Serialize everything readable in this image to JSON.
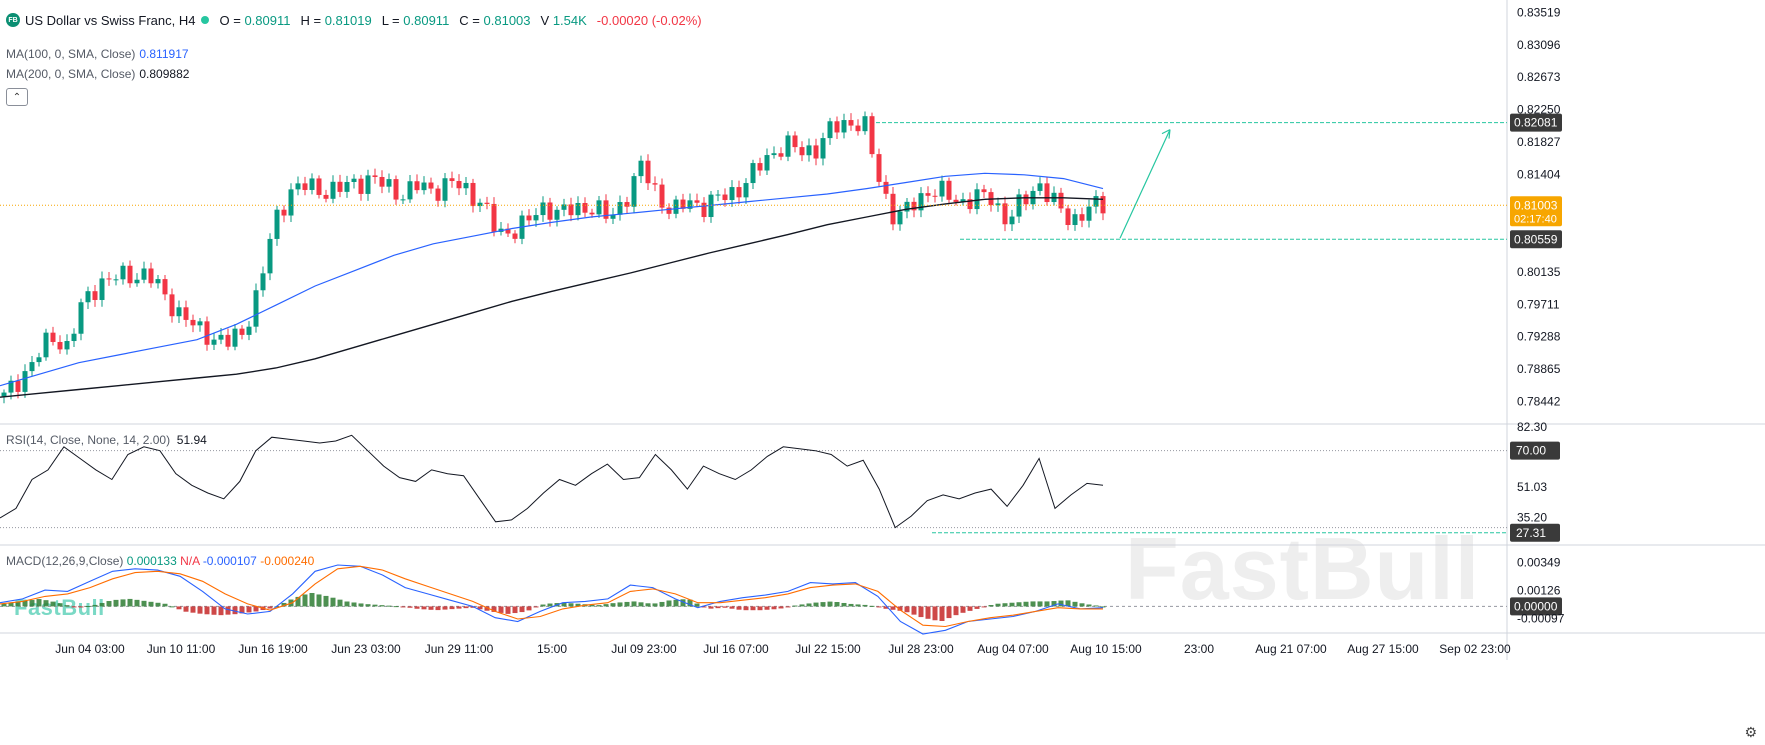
{
  "header": {
    "logo_text": "FB",
    "symbol": "US Dollar vs Swiss Franc, H4",
    "open_label": "O",
    "open": "0.80911",
    "high_label": "H",
    "high": "0.81019",
    "low_label": "L",
    "low": "0.80911",
    "close_label": "C",
    "close": "0.81003",
    "volume_label": "V",
    "volume": "1.54K",
    "change": "-0.00020 (-0.02%)"
  },
  "indicators": {
    "ma100": {
      "label": "MA(100, 0, SMA, Close)",
      "value": "0.811917",
      "color": "#2962ff"
    },
    "ma200": {
      "label": "MA(200, 0, SMA, Close)",
      "value": "0.809882",
      "color": "#000000"
    },
    "rsi": {
      "label": "RSI(14, Close, None, 14, 2.00)",
      "value": "51.94"
    },
    "macd": {
      "label": "MACD(12,26,9,Close)",
      "hist": "0.000133",
      "na": "N/A",
      "macd": "-0.000107",
      "signal": "-0.000240"
    }
  },
  "watermark": {
    "brand": "FastBull"
  },
  "chart_data": [
    {
      "type": "candlestick",
      "title": "US Dollar vs Swiss Franc, H4",
      "x_tick_labels": [
        "Jun 04 03:00",
        "Jun 10 11:00",
        "Jun 16 19:00",
        "Jun 23 03:00",
        "Jun 29 11:00",
        "15:00",
        "Jul 09 23:00",
        "Jul 16 07:00",
        "Jul 22 15:00",
        "Jul 28 23:00",
        "Aug 04 07:00",
        "Aug 10 15:00",
        "23:00",
        "Aug 21 07:00",
        "Aug 27 15:00",
        "Sep 02 23:00"
      ],
      "y_tick_labels": [
        "0.83519",
        "0.83096",
        "0.82673",
        "0.82250",
        "0.81827",
        "0.81404",
        "0.80135",
        "0.79711",
        "0.79288",
        "0.78865",
        "0.78442"
      ],
      "ylim": [
        0.7815,
        0.8368
      ],
      "price_path": [
        0.785,
        0.7875,
        0.79,
        0.793,
        0.7915,
        0.7975,
        0.8,
        0.8005,
        0.801,
        0.801,
        0.7985,
        0.796,
        0.794,
        0.793,
        0.792,
        0.7935,
        0.799,
        0.808,
        0.812,
        0.8125,
        0.812,
        0.812,
        0.813,
        0.8135,
        0.8125,
        0.8115,
        0.8125,
        0.812,
        0.813,
        0.812,
        0.8105,
        0.806,
        0.807,
        0.808,
        0.81,
        0.809,
        0.8095,
        0.81,
        0.808,
        0.811,
        0.815,
        0.8115,
        0.809,
        0.8105,
        0.81,
        0.811,
        0.812,
        0.814,
        0.8165,
        0.818,
        0.817,
        0.8175,
        0.82,
        0.821,
        0.8205,
        0.813,
        0.808,
        0.81,
        0.812,
        0.8115,
        0.8105,
        0.811,
        0.811,
        0.808,
        0.8105,
        0.813,
        0.81,
        0.808,
        0.8095,
        0.81
      ],
      "ma100": [
        0.7865,
        0.788,
        0.7895,
        0.7905,
        0.7915,
        0.7925,
        0.7945,
        0.797,
        0.7995,
        0.8015,
        0.8035,
        0.805,
        0.806,
        0.807,
        0.8078,
        0.8085,
        0.809,
        0.8095,
        0.81,
        0.8105,
        0.811,
        0.8115,
        0.8122,
        0.813,
        0.8138,
        0.8142,
        0.814,
        0.8135,
        0.8122
      ],
      "ma200": [
        0.785,
        0.7855,
        0.786,
        0.7865,
        0.787,
        0.7875,
        0.788,
        0.7888,
        0.79,
        0.7915,
        0.793,
        0.7945,
        0.796,
        0.7975,
        0.7988,
        0.8,
        0.8012,
        0.8025,
        0.8038,
        0.805,
        0.8062,
        0.8075,
        0.8085,
        0.8095,
        0.8102,
        0.8108,
        0.811,
        0.811,
        0.8108
      ],
      "levels": {
        "resistance": "0.82081",
        "support": "0.80559",
        "last": "0.81003",
        "timer": "02:17:40"
      }
    },
    {
      "type": "line",
      "name": "RSI",
      "y_tick_labels": [
        "82.30",
        "70.00",
        "51.03",
        "35.20",
        "27.31"
      ],
      "ylim": [
        22,
        82.3
      ],
      "levels": [
        70,
        30
      ],
      "values": [
        35,
        40,
        55,
        60,
        72,
        66,
        60,
        55,
        68,
        72,
        70,
        58,
        52,
        48,
        45,
        54,
        70,
        77,
        76,
        75,
        74,
        75,
        78,
        70,
        62,
        56,
        54,
        60,
        58,
        57,
        45,
        33,
        34,
        40,
        48,
        55,
        52,
        58,
        63,
        55,
        56,
        68,
        60,
        50,
        62,
        58,
        55,
        60,
        67,
        72,
        71,
        70,
        68,
        62,
        65,
        50,
        30,
        36,
        44,
        47,
        45,
        48,
        50,
        41,
        52,
        66,
        40,
        47,
        53,
        52
      ]
    },
    {
      "type": "bar",
      "name": "MACD",
      "y_tick_labels": [
        "0.00349",
        "0.00126",
        "0.00000",
        "-0.00097"
      ],
      "ylim": [
        -0.0018,
        0.0045
      ],
      "histogram": [
        0.0002,
        0.0004,
        0.0006,
        0.0003,
        -0.0001,
        0.0001,
        0.0005,
        0.0006,
        0.0004,
        0.0002,
        -0.0004,
        -0.0006,
        -0.0007,
        -0.0006,
        -0.0004,
        -0.0001,
        0.0006,
        0.0011,
        0.0008,
        0.0004,
        0.0002,
        0.0001,
        0.0,
        -0.0002,
        -0.0003,
        -0.0002,
        -0.0001,
        -0.0004,
        -0.0006,
        -0.0004,
        0.0002,
        0.0003,
        0.0002,
        0.0001,
        0.0003,
        0.0004,
        0.0002,
        0.0005,
        0.0006,
        -0.0002,
        -0.0001,
        -0.0003,
        -0.0003,
        -0.0002,
        0.0001,
        0.0003,
        0.0004,
        0.0002,
        0.0001,
        -0.0002,
        -0.0004,
        -0.0009,
        -0.0012,
        -0.0006,
        -0.0002,
        0.0002,
        0.0003,
        0.0004,
        0.0004,
        0.0005,
        0.0002,
        0.0
      ],
      "macd_line": [
        0.0003,
        0.0006,
        0.0013,
        0.0012,
        0.002,
        0.0028,
        0.003,
        0.0029,
        0.0024,
        0.0012,
        -0.0002,
        -0.0006,
        -0.0004,
        0.001,
        0.0028,
        0.0033,
        0.0032,
        0.0025,
        0.0015,
        0.001,
        0.0005,
        0.0,
        -0.0009,
        -0.0012,
        -0.0004,
        0.0003,
        0.0004,
        0.0006,
        0.0017,
        0.0015,
        0.0006,
        -0.0001,
        0.0004,
        0.0007,
        0.0009,
        0.0012,
        0.0019,
        0.0018,
        0.0019,
        0.0008,
        -0.0012,
        -0.0022,
        -0.0019,
        -0.0012,
        -0.001,
        -0.0008,
        -0.0004,
        0.0002,
        -0.0002,
        -0.0001
      ],
      "signal_line": [
        0.0002,
        0.0004,
        0.0008,
        0.001,
        0.0015,
        0.0022,
        0.0027,
        0.0028,
        0.0026,
        0.002,
        0.001,
        0.0002,
        -0.0003,
        0.0003,
        0.0018,
        0.003,
        0.0032,
        0.0029,
        0.0022,
        0.0016,
        0.001,
        0.0004,
        -0.0004,
        -0.001,
        -0.0008,
        -0.0002,
        0.0001,
        0.0003,
        0.0012,
        0.0014,
        0.001,
        0.0003,
        0.0003,
        0.0005,
        0.0007,
        0.001,
        0.0015,
        0.0017,
        0.0018,
        0.0012,
        -0.0003,
        -0.0015,
        -0.0016,
        -0.0012,
        -0.0009,
        -0.0007,
        -0.0004,
        -0.0001,
        -0.0002,
        -0.0002
      ]
    }
  ],
  "colors": {
    "up": "#089981",
    "down": "#f23645",
    "ma100": "#2962ff",
    "ma200": "#131722",
    "level": "#26c6a0",
    "price_tag": "#f7a600",
    "hist_up": "#2e7d32",
    "hist_down": "#c62828",
    "macd": "#2962ff",
    "signal": "#ff6d00"
  }
}
